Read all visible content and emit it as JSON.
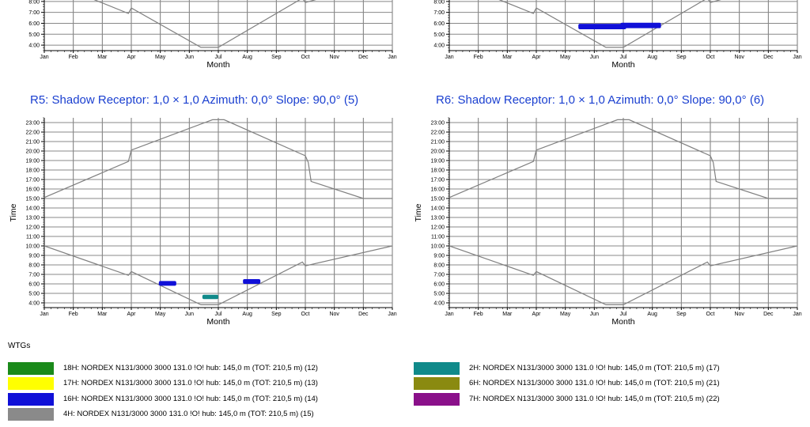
{
  "chart_data": [
    {
      "type": "line",
      "title": "",
      "xlabel": "Month",
      "ylabel": "",
      "x_categories": [
        "Jan",
        "Feb",
        "Mar",
        "Apr",
        "May",
        "Jun",
        "Jul",
        "Aug",
        "Sep",
        "Oct",
        "Nov",
        "Dec",
        "Jan"
      ],
      "y_ticks": [
        "4:00",
        "5:00",
        "6:00",
        "7:00",
        "8:00"
      ],
      "ylim": [
        3.5,
        9.0
      ],
      "grid": true,
      "series": [
        {
          "role": "sunrise",
          "color": "#808080",
          "points": [
            [
              0,
              10.0
            ],
            [
              2.9,
              6.9
            ],
            [
              3.0,
              7.4
            ],
            [
              5.4,
              3.8
            ],
            [
              6.0,
              3.8
            ],
            [
              8.9,
              8.3
            ],
            [
              9.0,
              7.9
            ],
            [
              10.5,
              9.0
            ]
          ]
        }
      ],
      "shadow_events": []
    },
    {
      "type": "line",
      "title": "",
      "xlabel": "Month",
      "ylabel": "",
      "x_categories": [
        "Jan",
        "Feb",
        "Mar",
        "Apr",
        "May",
        "Jun",
        "Jul",
        "Aug",
        "Sep",
        "Oct",
        "Nov",
        "Dec",
        "Jan"
      ],
      "y_ticks": [
        "4:00",
        "5:00",
        "6:00",
        "7:00",
        "8:00"
      ],
      "ylim": [
        3.5,
        9.0
      ],
      "grid": true,
      "series": [
        {
          "role": "sunrise",
          "color": "#808080",
          "points": [
            [
              0,
              10.0
            ],
            [
              2.9,
              6.9
            ],
            [
              3.0,
              7.4
            ],
            [
              5.4,
              3.8
            ],
            [
              6.0,
              3.8
            ],
            [
              8.9,
              8.3
            ],
            [
              9.0,
              7.9
            ],
            [
              10.5,
              9.0
            ]
          ]
        }
      ],
      "shadow_events": [
        {
          "wtg": "16H",
          "color": "#1010d8",
          "x0": 4.45,
          "x1": 6.1,
          "y0": 5.45,
          "y1": 5.95
        },
        {
          "wtg": "16H",
          "color": "#1010d8",
          "x0": 5.9,
          "x1": 7.3,
          "y0": 5.55,
          "y1": 6.05
        }
      ]
    },
    {
      "type": "line",
      "title": "R5: Shadow  Receptor: 1,0 × 1,0  Azimuth: 0,0°  Slope: 90,0° (5)",
      "xlabel": "Month",
      "ylabel": "Time",
      "x_categories": [
        "Jan",
        "Feb",
        "Mar",
        "Apr",
        "May",
        "Jun",
        "Jul",
        "Aug",
        "Sep",
        "Oct",
        "Nov",
        "Dec",
        "Jan"
      ],
      "y_ticks": [
        "4:00",
        "5:00",
        "6:00",
        "7:00",
        "8:00",
        "9:00",
        "10:00",
        "11:00",
        "12:00",
        "13:00",
        "14:00",
        "15:00",
        "16:00",
        "17:00",
        "18:00",
        "19:00",
        "20:00",
        "21:00",
        "22:00",
        "23:00"
      ],
      "ylim": [
        3.5,
        23.5
      ],
      "grid": true,
      "series": [
        {
          "role": "sunrise",
          "color": "#808080",
          "points": [
            [
              0,
              10.0
            ],
            [
              2.9,
              6.9
            ],
            [
              3.0,
              7.3
            ],
            [
              5.4,
              3.8
            ],
            [
              6.0,
              3.8
            ],
            [
              8.9,
              8.3
            ],
            [
              9.0,
              7.9
            ],
            [
              12.0,
              10.0
            ]
          ]
        },
        {
          "role": "sunset",
          "color": "#808080",
          "points": [
            [
              0,
              15.1
            ],
            [
              2.9,
              18.9
            ],
            [
              3.0,
              20.1
            ],
            [
              5.8,
              23.3
            ],
            [
              6.2,
              23.3
            ],
            [
              9.0,
              19.5
            ],
            [
              9.1,
              18.8
            ],
            [
              9.2,
              16.8
            ],
            [
              11.0,
              15.0
            ],
            [
              12.0,
              15.0
            ]
          ]
        }
      ],
      "shadow_events": [
        {
          "wtg": "16H",
          "color": "#1010d8",
          "x0": 3.95,
          "x1": 4.55,
          "y0": 5.8,
          "y1": 6.3
        },
        {
          "wtg": "2H",
          "color": "#108a8a",
          "x0": 5.45,
          "x1": 6.0,
          "y0": 4.4,
          "y1": 4.85
        },
        {
          "wtg": "16H",
          "color": "#1010d8",
          "x0": 6.85,
          "x1": 7.45,
          "y0": 6.0,
          "y1": 6.5
        }
      ]
    },
    {
      "type": "line",
      "title": "R6: Shadow  Receptor: 1,0 × 1,0  Azimuth: 0,0°  Slope: 90,0° (6)",
      "xlabel": "Month",
      "ylabel": "Time",
      "x_categories": [
        "Jan",
        "Feb",
        "Mar",
        "Apr",
        "May",
        "Jun",
        "Jul",
        "Aug",
        "Sep",
        "Oct",
        "Nov",
        "Dec",
        "Jan"
      ],
      "y_ticks": [
        "4:00",
        "5:00",
        "6:00",
        "7:00",
        "8:00",
        "9:00",
        "10:00",
        "11:00",
        "12:00",
        "13:00",
        "14:00",
        "15:00",
        "16:00",
        "17:00",
        "18:00",
        "19:00",
        "20:00",
        "21:00",
        "22:00",
        "23:00"
      ],
      "ylim": [
        3.5,
        23.5
      ],
      "grid": true,
      "series": [
        {
          "role": "sunrise",
          "color": "#808080",
          "points": [
            [
              0,
              10.0
            ],
            [
              2.9,
              6.9
            ],
            [
              3.0,
              7.3
            ],
            [
              5.4,
              3.8
            ],
            [
              6.0,
              3.8
            ],
            [
              8.9,
              8.3
            ],
            [
              9.0,
              7.9
            ],
            [
              12.0,
              10.0
            ]
          ]
        },
        {
          "role": "sunset",
          "color": "#808080",
          "points": [
            [
              0,
              15.1
            ],
            [
              2.9,
              18.9
            ],
            [
              3.0,
              20.1
            ],
            [
              5.8,
              23.3
            ],
            [
              6.2,
              23.3
            ],
            [
              9.0,
              19.5
            ],
            [
              9.1,
              18.8
            ],
            [
              9.2,
              16.8
            ],
            [
              11.0,
              15.0
            ],
            [
              12.0,
              15.0
            ]
          ]
        }
      ],
      "shadow_events": []
    }
  ],
  "legend": {
    "heading": "WTGs",
    "items": [
      {
        "color": "#1a8a1a",
        "label": "18H: NORDEX N131/3000 3000 131.0 !O! hub: 145,0 m (TOT: 210,5 m) (12)"
      },
      {
        "color": "#ffff00",
        "label": "17H: NORDEX N131/3000 3000 131.0 !O! hub: 145,0 m (TOT: 210,5 m) (13)"
      },
      {
        "color": "#1010d8",
        "label": "16H: NORDEX N131/3000 3000 131.0 !O! hub: 145,0 m (TOT: 210,5 m) (14)"
      },
      {
        "color": "#8a8a8a",
        "label": "4H: NORDEX N131/3000 3000 131.0 !O! hub: 145,0 m (TOT: 210,5 m) (15)"
      },
      {
        "color": "#108a8a",
        "label": "2H: NORDEX N131/3000 3000 131.0 !O! hub: 145,0 m (TOT: 210,5 m) (17)"
      },
      {
        "color": "#8a8a10",
        "label": "6H: NORDEX N131/3000 3000 131.0 !O! hub: 145,0 m (TOT: 210,5 m) (21)"
      },
      {
        "color": "#8a108a",
        "label": "7H: NORDEX N131/3000 3000 131.0 !O! hub: 145,0 m (TOT: 210,5 m) (22)"
      }
    ]
  }
}
